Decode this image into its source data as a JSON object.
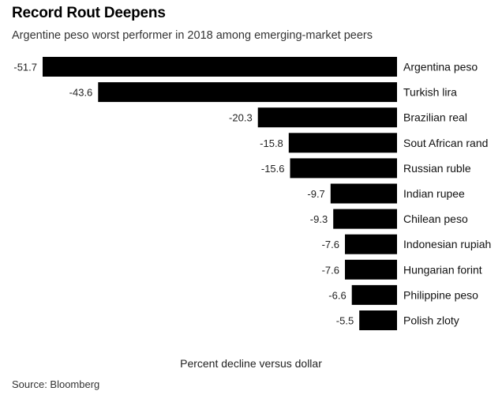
{
  "chart_data": {
    "type": "bar",
    "orientation": "horizontal",
    "title": "Record Rout Deepens",
    "subtitle": "Argentine peso worst performer in 2018 among emerging-market peers",
    "xlabel": "Percent decline versus dollar",
    "ylabel": "",
    "xlim": [
      -51.7,
      0
    ],
    "grid": false,
    "legend": "none",
    "bar_color": "#000000",
    "categories": [
      "Argentina peso",
      "Turkish lira",
      "Brazilian real",
      "Sout African rand",
      "Russian ruble",
      "Indian rupee",
      "Chilean peso",
      "Indonesian rupiah",
      "Hungarian forint",
      "Philippine peso",
      "Polish zloty"
    ],
    "values": [
      -51.7,
      -43.6,
      -20.3,
      -15.8,
      -15.6,
      -9.7,
      -9.3,
      -7.6,
      -7.6,
      -6.6,
      -5.5
    ],
    "value_labels": [
      "-51.7",
      "-43.6",
      "-20.3",
      "-15.8",
      "-15.6",
      "-9.7",
      "-9.3",
      "-7.6",
      "-7.6",
      "-6.6",
      "-5.5"
    ]
  },
  "source": "Source: Bloomberg"
}
